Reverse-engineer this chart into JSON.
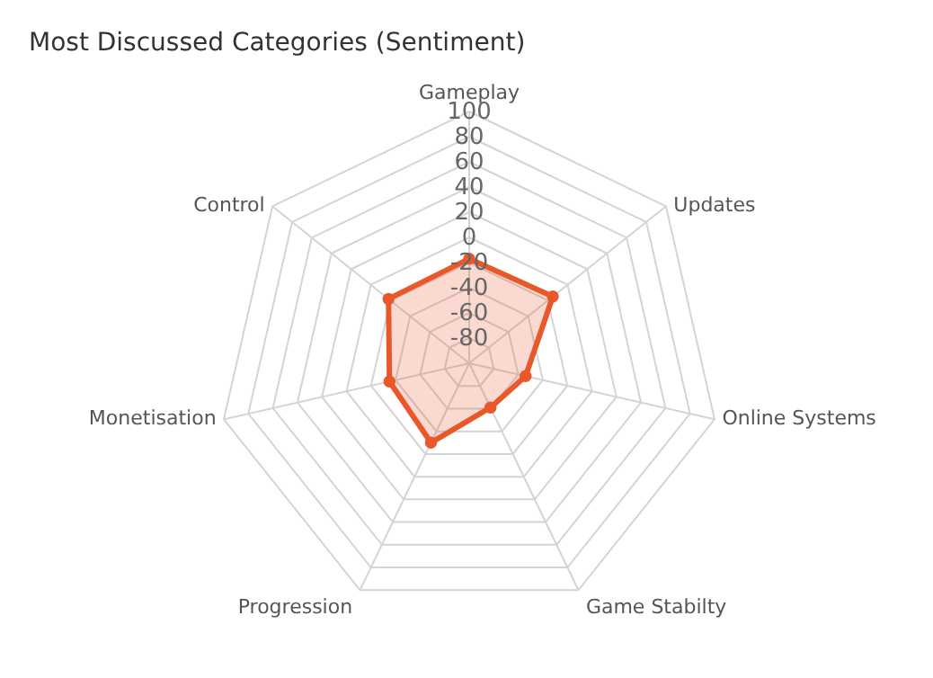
{
  "chart_data": {
    "type": "radar",
    "title": "Most Discussed Categories (Sentiment)",
    "categories": [
      "Gameplay",
      "Updates",
      "Online Systems",
      "Game Stabilty",
      "Progression",
      "Monetisation",
      "Control"
    ],
    "series": [
      {
        "color": "#e8582a",
        "values": [
          -17,
          -15,
          -54,
          -61,
          -30,
          -35,
          -18
        ]
      }
    ],
    "ylim": [
      -100,
      100
    ],
    "yticks": [
      100,
      80,
      60,
      40,
      20,
      0,
      -20,
      -40,
      -60,
      -80
    ],
    "grid": true,
    "marker": "circle"
  }
}
